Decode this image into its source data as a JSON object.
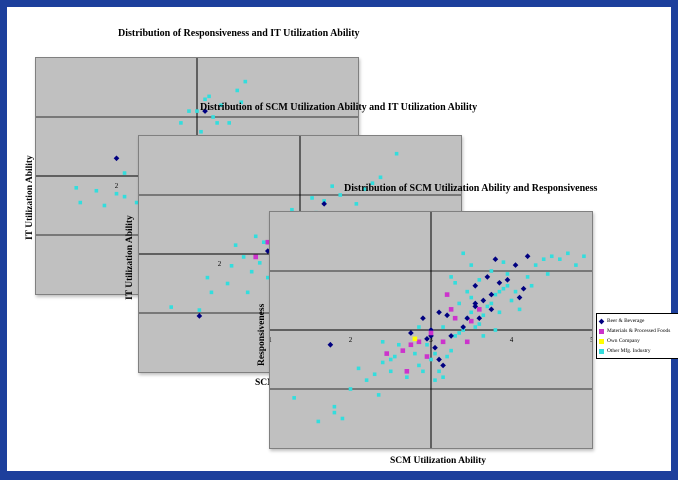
{
  "chart_data": [
    {
      "type": "scatter",
      "title": "Distribution of Responsiveness and IT Utilization Ability",
      "xlabel": "",
      "ylabel": "IT Utilization Ability",
      "xlim": [
        1,
        5
      ],
      "ylim": [
        1,
        5
      ],
      "tick_labels": [
        "2"
      ],
      "grid": true,
      "series": [
        {
          "name": "Other Mfg. Industry",
          "color": "#33dddd",
          "points": [
            [
              1.55,
              2.55
            ],
            [
              2.25,
              2.55
            ],
            [
              1.75,
              2.75
            ],
            [
              1.85,
              2.5
            ],
            [
              1.5,
              2.8
            ],
            [
              2.0,
              2.7
            ],
            [
              2.1,
              2.65
            ],
            [
              2.3,
              3.0
            ],
            [
              2.4,
              3.1
            ],
            [
              2.1,
              3.05
            ],
            [
              2.9,
              4.1
            ],
            [
              3.1,
              4.3
            ],
            [
              3.15,
              4.35
            ],
            [
              3.2,
              4.0
            ],
            [
              3.25,
              3.9
            ],
            [
              3.0,
              4.1
            ],
            [
              3.3,
              4.2
            ],
            [
              3.5,
              4.45
            ],
            [
              3.6,
              4.6
            ],
            [
              3.55,
              4.25
            ],
            [
              3.05,
              3.75
            ],
            [
              3.4,
              3.9
            ],
            [
              2.8,
              3.9
            ]
          ]
        },
        {
          "name": "Beer & Beverage",
          "color": "#000080",
          "points": [
            [
              3.1,
              4.1
            ],
            [
              2.3,
              3.05
            ],
            [
              2.0,
              3.3
            ]
          ]
        }
      ]
    },
    {
      "type": "scatter",
      "title": "Distribution of SCM Utilization Ability and IT Utilization Ability",
      "xlabel": "SCM",
      "ylabel": "IT Utilization Ability",
      "xlim": [
        1,
        5
      ],
      "ylim": [
        1,
        5
      ],
      "tick_labels": [
        "2"
      ],
      "grid": true,
      "series": [
        {
          "name": "Other Mfg. Industry",
          "color": "#33dddd",
          "points": [
            [
              1.4,
              2.1
            ],
            [
              1.75,
              2.05
            ],
            [
              1.9,
              2.35
            ],
            [
              2.1,
              2.5
            ],
            [
              2.15,
              2.8
            ],
            [
              2.3,
              2.95
            ],
            [
              2.2,
              3.15
            ],
            [
              2.4,
              2.7
            ],
            [
              2.5,
              2.85
            ],
            [
              2.7,
              3.0
            ],
            [
              2.6,
              2.6
            ],
            [
              2.45,
              3.3
            ],
            [
              2.8,
              3.5
            ],
            [
              2.9,
              3.75
            ],
            [
              3.0,
              3.6
            ],
            [
              3.2,
              3.7
            ],
            [
              3.3,
              3.9
            ],
            [
              3.5,
              4.0
            ],
            [
              3.4,
              4.15
            ],
            [
              3.8,
              4.1
            ],
            [
              3.9,
              4.2
            ],
            [
              4.2,
              4.7
            ],
            [
              4.0,
              4.3
            ],
            [
              3.7,
              3.85
            ],
            [
              3.15,
              3.95
            ],
            [
              2.35,
              2.35
            ],
            [
              1.85,
              2.6
            ],
            [
              2.55,
              3.2
            ]
          ]
        },
        {
          "name": "Beer & Beverage",
          "color": "#000080",
          "points": [
            [
              1.75,
              1.95
            ],
            [
              3.3,
              3.85
            ],
            [
              3.4,
              3.65
            ],
            [
              2.6,
              3.05
            ]
          ]
        },
        {
          "name": "Materials & Processed Foods",
          "color": "#cc33cc",
          "points": [
            [
              2.45,
              2.95
            ],
            [
              2.6,
              3.2
            ]
          ]
        }
      ]
    },
    {
      "type": "scatter",
      "title": "Distribution of SCM Utilization Ability and Responsiveness",
      "xlabel": "SCM Utilization Ability",
      "ylabel": "Responsiveness",
      "xlim": [
        1,
        5
      ],
      "ylim": [
        1,
        5
      ],
      "tick_labels": [
        "1",
        "2",
        "3",
        "4",
        "5"
      ],
      "grid": true,
      "series": [
        {
          "name": "Beer & Beverage",
          "color": "#000080",
          "points": [
            [
              1.75,
              2.75
            ],
            [
              2.75,
              2.95
            ],
            [
              3.0,
              3.0
            ],
            [
              3.05,
              2.7
            ],
            [
              3.15,
              2.4
            ],
            [
              3.1,
              2.5
            ],
            [
              3.0,
              2.9
            ],
            [
              3.2,
              3.25
            ],
            [
              3.45,
              3.2
            ],
            [
              3.55,
              3.4
            ],
            [
              3.55,
              3.45
            ],
            [
              3.65,
              3.5
            ],
            [
              3.75,
              3.35
            ],
            [
              3.7,
              3.9
            ],
            [
              3.75,
              3.6
            ],
            [
              3.85,
              3.8
            ],
            [
              3.95,
              3.85
            ],
            [
              4.05,
              4.1
            ],
            [
              4.1,
              3.55
            ],
            [
              4.15,
              3.7
            ],
            [
              4.2,
              4.25
            ],
            [
              3.8,
              4.2
            ],
            [
              3.6,
              3.2
            ],
            [
              3.4,
              3.05
            ],
            [
              3.25,
              2.9
            ],
            [
              2.95,
              2.85
            ],
            [
              2.9,
              3.2
            ],
            [
              3.1,
              3.3
            ],
            [
              3.55,
              3.75
            ]
          ]
        },
        {
          "name": "Materials & Processed Foods",
          "color": "#cc33cc",
          "points": [
            [
              2.45,
              2.6
            ],
            [
              2.65,
              2.65
            ],
            [
              2.7,
              2.3
            ],
            [
              2.75,
              2.75
            ],
            [
              2.85,
              2.8
            ],
            [
              3.0,
              2.95
            ],
            [
              3.15,
              2.8
            ],
            [
              3.2,
              3.6
            ],
            [
              3.25,
              3.35
            ],
            [
              3.45,
              2.8
            ],
            [
              3.5,
              3.15
            ],
            [
              3.3,
              3.2
            ],
            [
              2.95,
              2.55
            ],
            [
              3.6,
              3.35
            ]
          ]
        },
        {
          "name": "Own Company",
          "color": "#ffff00",
          "points": [
            [
              2.8,
              2.85
            ]
          ]
        },
        {
          "name": "Other Mfg. Industry",
          "color": "#33dddd",
          "points": [
            [
              1.3,
              1.85
            ],
            [
              1.6,
              1.45
            ],
            [
              1.8,
              1.6
            ],
            [
              1.9,
              1.5
            ],
            [
              1.8,
              1.7
            ],
            [
              2.0,
              2.0
            ],
            [
              2.1,
              2.35
            ],
            [
              2.2,
              2.15
            ],
            [
              2.3,
              2.25
            ],
            [
              2.35,
              1.9
            ],
            [
              2.4,
              2.45
            ],
            [
              2.5,
              2.5
            ],
            [
              2.55,
              2.55
            ],
            [
              2.6,
              2.75
            ],
            [
              2.4,
              2.8
            ],
            [
              2.5,
              2.3
            ],
            [
              2.7,
              2.2
            ],
            [
              2.8,
              2.6
            ],
            [
              2.85,
              2.4
            ],
            [
              2.9,
              2.3
            ],
            [
              2.95,
              2.75
            ],
            [
              3.0,
              2.5
            ],
            [
              3.05,
              2.6
            ],
            [
              3.1,
              2.3
            ],
            [
              3.15,
              2.2
            ],
            [
              3.2,
              2.55
            ],
            [
              3.25,
              2.65
            ],
            [
              3.3,
              2.9
            ],
            [
              3.35,
              2.95
            ],
            [
              3.4,
              3.0
            ],
            [
              3.45,
              3.2
            ],
            [
              3.5,
              3.3
            ],
            [
              3.55,
              3.05
            ],
            [
              3.6,
              3.1
            ],
            [
              3.65,
              3.25
            ],
            [
              3.7,
              3.4
            ],
            [
              3.75,
              3.45
            ],
            [
              3.8,
              3.6
            ],
            [
              3.85,
              3.65
            ],
            [
              3.9,
              3.7
            ],
            [
              3.95,
              3.75
            ],
            [
              4.0,
              3.5
            ],
            [
              4.1,
              3.35
            ],
            [
              4.2,
              3.9
            ],
            [
              4.3,
              4.1
            ],
            [
              4.4,
              4.2
            ],
            [
              4.5,
              4.25
            ],
            [
              4.6,
              4.2
            ],
            [
              4.7,
              4.3
            ],
            [
              4.8,
              4.1
            ],
            [
              4.9,
              4.25
            ],
            [
              3.95,
              3.95
            ],
            [
              3.75,
              4.0
            ],
            [
              3.5,
              4.1
            ],
            [
              3.4,
              4.3
            ],
            [
              3.3,
              3.8
            ],
            [
              3.25,
              3.9
            ],
            [
              3.35,
              3.45
            ],
            [
              3.5,
              3.55
            ],
            [
              3.45,
              3.65
            ],
            [
              3.15,
              3.05
            ],
            [
              3.05,
              2.15
            ],
            [
              2.85,
              3.05
            ],
            [
              3.65,
              2.9
            ],
            [
              3.8,
              3.0
            ],
            [
              3.85,
              3.3
            ],
            [
              4.25,
              3.75
            ],
            [
              4.45,
              3.95
            ],
            [
              4.05,
              3.65
            ],
            [
              3.9,
              4.15
            ],
            [
              3.6,
              3.85
            ]
          ]
        }
      ]
    }
  ],
  "legend": {
    "items": [
      {
        "label": "Beer & Beverage",
        "color": "#000080",
        "shape": "diamond"
      },
      {
        "label": "Materials & Processed Foods",
        "color": "#cc33cc",
        "shape": "square"
      },
      {
        "label": "Own Company",
        "color": "#ffff00",
        "shape": "square"
      },
      {
        "label": "Other Mfg. Industry",
        "color": "#33dddd",
        "shape": "square"
      }
    ]
  }
}
